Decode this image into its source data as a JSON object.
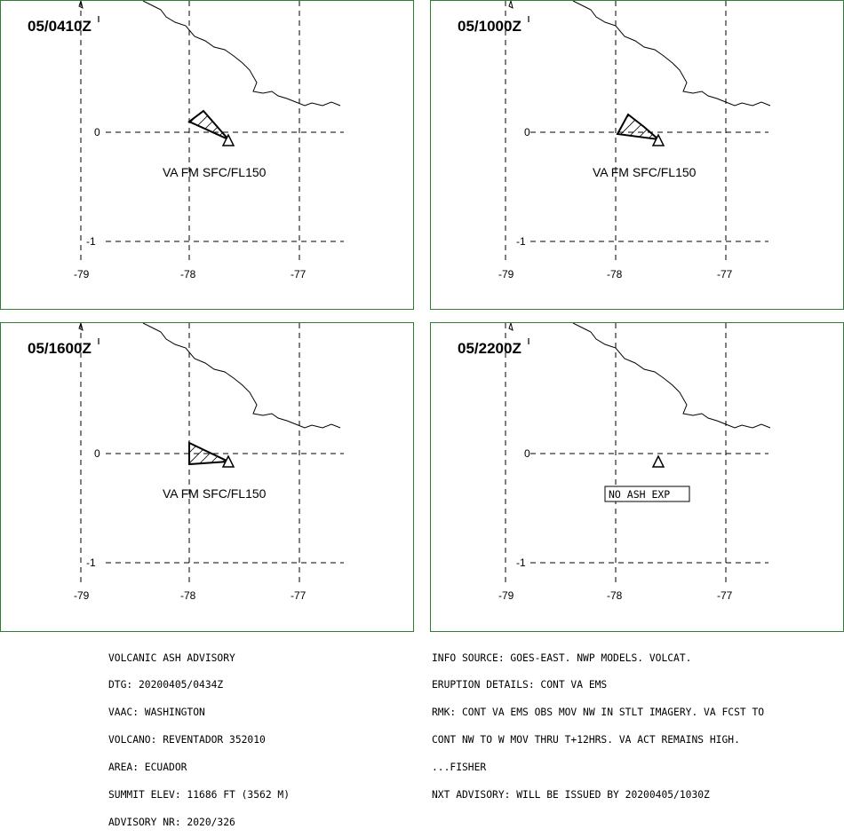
{
  "panels": [
    {
      "tag": "05/0410Z",
      "label": "VA FM SFC/FL150",
      "has_ash": true
    },
    {
      "tag": "05/1000Z",
      "label": "VA FM SFC/FL150",
      "has_ash": true
    },
    {
      "tag": "05/1600Z",
      "label": "VA FM SFC/FL150",
      "has_ash": true
    },
    {
      "tag": "05/2200Z",
      "label": "NO ASH EXP",
      "has_ash": false
    }
  ],
  "axis": {
    "lon_ticks": [
      "-79",
      "-78",
      "-77"
    ],
    "lat_ticks": [
      "0",
      "-1"
    ]
  },
  "advisory_left": [
    "VOLCANIC ASH ADVISORY",
    "DTG: 20200405/0434Z",
    "VAAC: WASHINGTON",
    "VOLCANO: REVENTADOR 352010",
    "AREA: ECUADOR",
    "SUMMIT ELEV: 11686 FT (3562 M)",
    "ADVISORY NR: 2020/326"
  ],
  "advisory_right": [
    "INFO SOURCE: GOES-EAST. NWP MODELS. VOLCAT.",
    "ERUPTION DETAILS: CONT VA EMS",
    "RMK: CONT VA EMS OBS MOV NW IN STLT IMAGERY. VA FCST TO",
    "CONT NW TO W MOV THRU T+12HRS. VA ACT REMAINS HIGH.",
    "...FISHER",
    "NXT ADVISORY: WILL BE ISSUED BY 20200405/1030Z"
  ],
  "colors": {
    "panel_border": "#2e7d32",
    "ink": "#000000"
  }
}
